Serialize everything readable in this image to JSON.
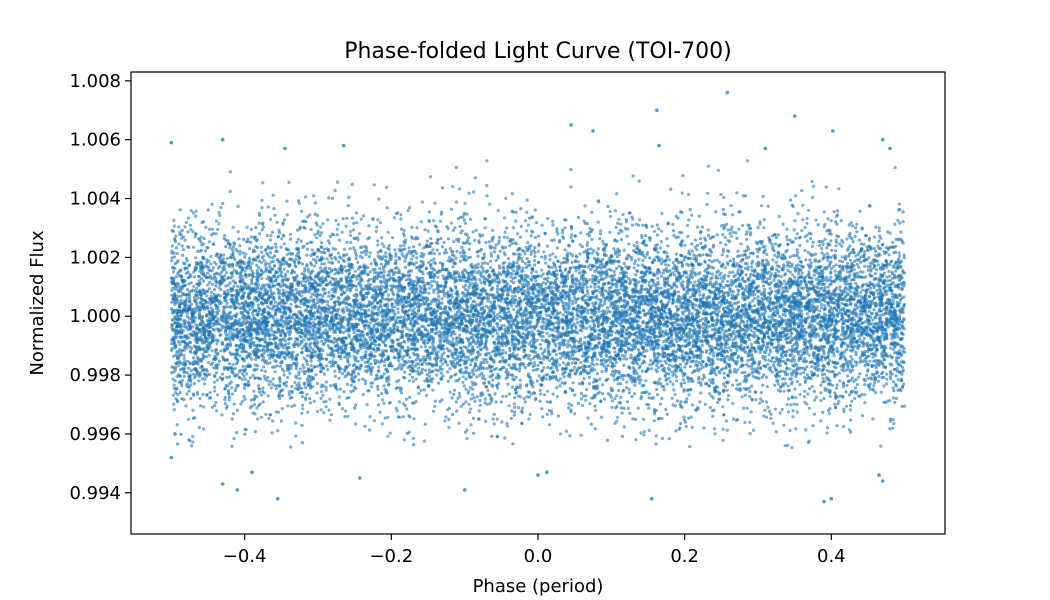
{
  "chart_data": {
    "type": "scatter",
    "title": "Phase-folded Light Curve (TOI-700)",
    "xlabel": "Phase (period)",
    "ylabel": "Normalized Flux",
    "xlim": [
      -0.555,
      0.555
    ],
    "ylim": [
      0.9926,
      1.0083
    ],
    "xticks": [
      -0.4,
      -0.2,
      0.0,
      0.2,
      0.4
    ],
    "xtick_labels": [
      "−0.4",
      "−0.2",
      "0.0",
      "0.2",
      "0.4"
    ],
    "yticks": [
      0.994,
      0.996,
      0.998,
      1.0,
      1.002,
      1.004,
      1.006,
      1.008
    ],
    "ytick_labels": [
      "0.994",
      "0.996",
      "0.998",
      "1.000",
      "1.002",
      "1.004",
      "1.006",
      "1.008"
    ],
    "grid": false,
    "marker_color": "#1f77b4",
    "series": [
      {
        "phase_range": [
          -0.5,
          0.5
        ],
        "n_points": 14000,
        "flux_mean": 1.0,
        "flux_std": 0.0015,
        "transit_dip": "none visible",
        "outliers": [
          [
            0.258,
            1.0076
          ],
          [
            0.162,
            1.007
          ],
          [
            0.045,
            1.0065
          ],
          [
            0.35,
            1.0068
          ],
          [
            0.075,
            1.0063
          ],
          [
            0.402,
            1.0063
          ],
          [
            -0.5,
            1.0059
          ],
          [
            -0.43,
            1.006
          ],
          [
            0.47,
            1.006
          ],
          [
            -0.265,
            1.0058
          ],
          [
            0.165,
            1.0058
          ],
          [
            0.48,
            1.0057
          ],
          [
            -0.345,
            1.0057
          ],
          [
            0.31,
            1.0057
          ],
          [
            -0.225,
            1.0033
          ],
          [
            -0.243,
            0.9945
          ],
          [
            -0.1,
            0.9941
          ],
          [
            -0.43,
            0.9943
          ],
          [
            -0.41,
            0.9941
          ],
          [
            -0.39,
            0.9947
          ],
          [
            -0.355,
            0.9938
          ],
          [
            0.155,
            0.9938
          ],
          [
            0.39,
            0.9937
          ],
          [
            0.4,
            0.9938
          ],
          [
            0.47,
            0.9944
          ],
          [
            0.465,
            0.9946
          ],
          [
            0.0,
            0.9946
          ],
          [
            0.012,
            0.9947
          ],
          [
            -0.5,
            0.9952
          ],
          [
            -0.495,
            0.996
          ]
        ]
      }
    ]
  }
}
